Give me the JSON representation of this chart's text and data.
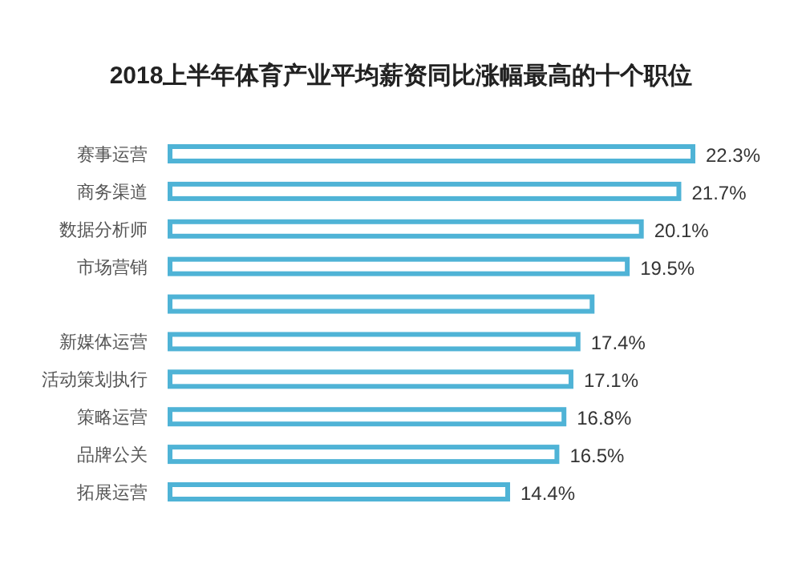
{
  "chart_data": {
    "type": "bar",
    "orientation": "horizontal",
    "title": "2018上半年体育产业平均薪资同比涨幅最高的十个职位",
    "categories": [
      "赛事运营",
      "商务渠道",
      "数据分析师",
      "市场营销",
      null,
      "新媒体运营",
      "活动策划执行",
      "策略运营",
      "品牌公关",
      "拓展运营"
    ],
    "values": [
      22.3,
      21.7,
      20.1,
      19.5,
      18.0,
      17.4,
      17.1,
      16.8,
      16.5,
      14.4
    ],
    "value_labels": [
      "22.3%",
      "21.7%",
      "20.1%",
      "19.5%",
      null,
      "17.4%",
      "17.1%",
      "16.8%",
      "16.5%",
      "14.4%"
    ],
    "color": "#4fb3d6"
  }
}
